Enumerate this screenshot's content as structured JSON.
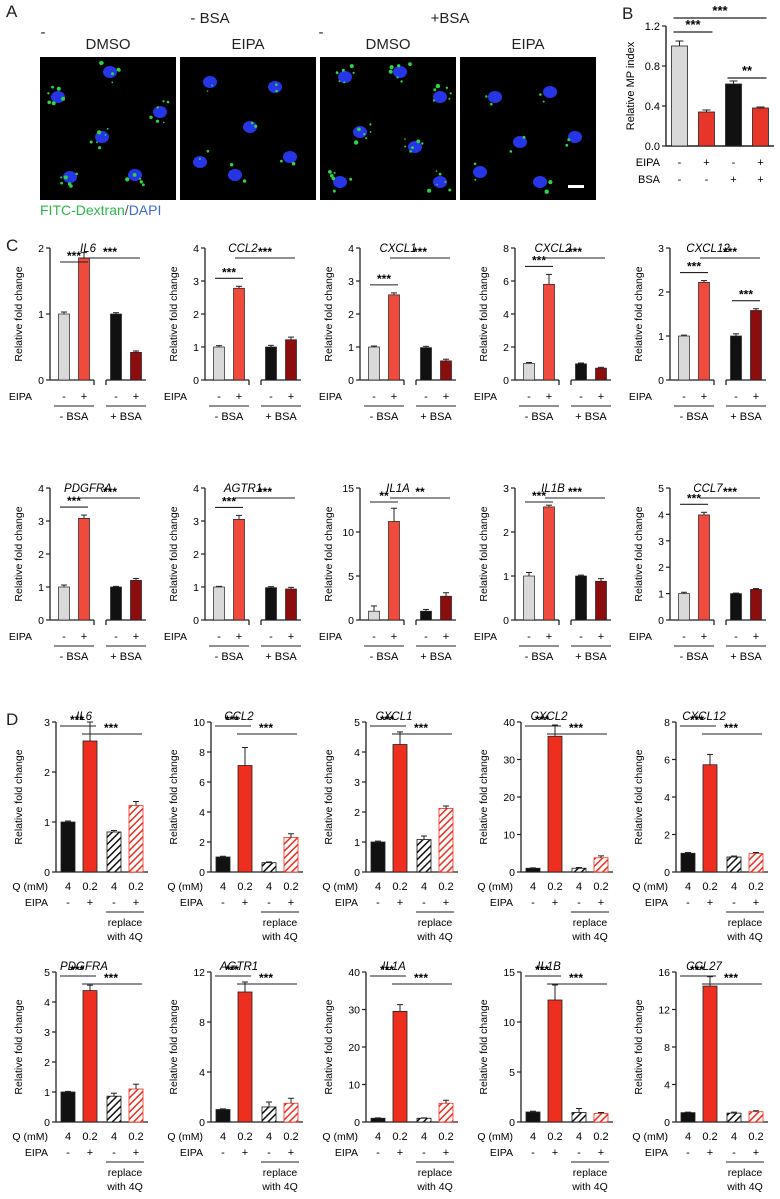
{
  "panelA": {
    "letter": "A",
    "group_labels": [
      "- BSA",
      "+BSA"
    ],
    "dash_marks": [
      "-",
      "-"
    ],
    "titles": [
      "DMSO",
      "EIPA",
      "DMSO",
      "EIPA"
    ],
    "legend_green": "FITC-Dextran",
    "legend_slash": "/",
    "legend_blue": "DAPI",
    "colors": {
      "dextran": "#2bd646",
      "dapi": "#2a3cff"
    }
  },
  "panelB": {
    "letter": "B",
    "chart_data": {
      "type": "bar",
      "ylabel": "Relative MP index",
      "ylim": [
        0,
        1.2
      ],
      "yticks": [
        "0.0",
        "0.4",
        "0.8",
        "1.2"
      ],
      "values": [
        1.0,
        0.34,
        0.62,
        0.38
      ],
      "errors": [
        0.05,
        0.02,
        0.03,
        0.01
      ],
      "colors": [
        "#d9d9d9",
        "#e8352a",
        "#111111",
        "#e8352a"
      ],
      "rows": [
        {
          "label": "EIPA",
          "marks": [
            "-",
            "+",
            "-",
            "+"
          ]
        },
        {
          "label": "BSA",
          "marks": [
            "-",
            "-",
            "+",
            "+"
          ]
        }
      ],
      "sig": [
        {
          "from": 0,
          "to": 3,
          "text": "***"
        },
        {
          "from": 0,
          "to": 1,
          "text": "***"
        },
        {
          "from": 2,
          "to": 3,
          "text": "**"
        }
      ]
    }
  },
  "panelC": {
    "letter": "C",
    "ylabel": "Relative fold change",
    "row_label": "EIPA",
    "marks": [
      "-",
      "+",
      "-",
      "+"
    ],
    "groups": [
      "- BSA",
      "+ BSA"
    ],
    "colors": [
      "#d9d9d9",
      "#f04a3c",
      "#111111",
      "#8b0d0d"
    ],
    "chart_data": [
      {
        "type": "bar",
        "title": "IL6",
        "ylim": [
          0,
          2
        ],
        "yticks": [
          "0",
          "1",
          "2"
        ],
        "values": [
          1.0,
          1.85,
          1.0,
          0.42
        ],
        "errors": [
          0.03,
          0.08,
          0.02,
          0.02
        ],
        "sig": [
          {
            "from": 0,
            "to": 1,
            "text": "***"
          },
          {
            "from": 1,
            "to": 3,
            "text": "***"
          }
        ]
      },
      {
        "type": "bar",
        "title": "CCL2",
        "ylim": [
          0,
          4
        ],
        "yticks": [
          "0",
          "1",
          "2",
          "3",
          "4"
        ],
        "values": [
          1.0,
          2.78,
          1.0,
          1.22
        ],
        "errors": [
          0.04,
          0.06,
          0.05,
          0.08
        ],
        "sig": [
          {
            "from": 0,
            "to": 1,
            "text": "***"
          },
          {
            "from": 1,
            "to": 3,
            "text": "***"
          }
        ]
      },
      {
        "type": "bar",
        "title": "CXCL1",
        "ylim": [
          0,
          4
        ],
        "yticks": [
          "0",
          "1",
          "2",
          "3",
          "4"
        ],
        "values": [
          1.0,
          2.58,
          0.98,
          0.58
        ],
        "errors": [
          0.03,
          0.06,
          0.04,
          0.05
        ],
        "sig": [
          {
            "from": 0,
            "to": 1,
            "text": "***"
          },
          {
            "from": 1,
            "to": 3,
            "text": "***"
          }
        ]
      },
      {
        "type": "bar",
        "title": "CXCL2",
        "ylim": [
          0,
          8
        ],
        "yticks": [
          "0",
          "2",
          "4",
          "6",
          "8"
        ],
        "values": [
          1.0,
          5.8,
          0.98,
          0.72
        ],
        "errors": [
          0.06,
          0.6,
          0.05,
          0.05
        ],
        "sig": [
          {
            "from": 0,
            "to": 1,
            "text": "***"
          },
          {
            "from": 1,
            "to": 3,
            "text": "***"
          }
        ]
      },
      {
        "type": "bar",
        "title": "CXCL12",
        "ylim": [
          0,
          3
        ],
        "yticks": [
          "0",
          "1",
          "2",
          "3"
        ],
        "values": [
          1.0,
          2.22,
          1.0,
          1.58
        ],
        "errors": [
          0.02,
          0.04,
          0.05,
          0.04
        ],
        "sig": [
          {
            "from": 0,
            "to": 1,
            "text": "***"
          },
          {
            "from": 1,
            "to": 3,
            "text": "***"
          },
          {
            "from": 2,
            "to": 3,
            "text": "***"
          }
        ]
      },
      {
        "type": "bar",
        "title": "PDGFRA",
        "ylim": [
          0,
          4
        ],
        "yticks": [
          "0",
          "1",
          "2",
          "3",
          "4"
        ],
        "values": [
          1.0,
          3.08,
          1.0,
          1.2
        ],
        "errors": [
          0.06,
          0.1,
          0.02,
          0.06
        ],
        "sig": [
          {
            "from": 0,
            "to": 1,
            "text": "***"
          },
          {
            "from": 1,
            "to": 3,
            "text": "***"
          }
        ]
      },
      {
        "type": "bar",
        "title": "AGTR1",
        "ylim": [
          0,
          4
        ],
        "yticks": [
          "0",
          "1",
          "2",
          "3",
          "4"
        ],
        "values": [
          1.0,
          3.05,
          0.98,
          0.94
        ],
        "errors": [
          0.02,
          0.12,
          0.03,
          0.05
        ],
        "sig": [
          {
            "from": 0,
            "to": 1,
            "text": "***"
          },
          {
            "from": 1,
            "to": 3,
            "text": "***"
          }
        ]
      },
      {
        "type": "bar",
        "title": "IL1A",
        "ylim": [
          0,
          15
        ],
        "yticks": [
          "0",
          "5",
          "10",
          "15"
        ],
        "values": [
          1.0,
          11.2,
          1.0,
          2.7
        ],
        "errors": [
          0.6,
          1.5,
          0.2,
          0.4
        ],
        "sig": [
          {
            "from": 0,
            "to": 1,
            "text": "**"
          },
          {
            "from": 1,
            "to": 3,
            "text": "**"
          }
        ]
      },
      {
        "type": "bar",
        "title": "IL1B",
        "ylim": [
          0,
          3
        ],
        "yticks": [
          "0",
          "1",
          "2",
          "3"
        ],
        "values": [
          1.0,
          2.57,
          1.0,
          0.88
        ],
        "errors": [
          0.08,
          0.04,
          0.02,
          0.06
        ],
        "sig": [
          {
            "from": 0,
            "to": 1,
            "text": "***"
          },
          {
            "from": 1,
            "to": 3,
            "text": "***"
          }
        ]
      },
      {
        "type": "bar",
        "title": "CCL7",
        "ylim": [
          0,
          5
        ],
        "yticks": [
          "0",
          "1",
          "2",
          "3",
          "4",
          "5"
        ],
        "values": [
          1.0,
          3.98,
          1.0,
          1.16
        ],
        "errors": [
          0.05,
          0.1,
          0.02,
          0.03
        ],
        "sig": [
          {
            "from": 0,
            "to": 1,
            "text": "***"
          },
          {
            "from": 1,
            "to": 3,
            "text": "***"
          }
        ]
      }
    ]
  },
  "panelD": {
    "letter": "D",
    "ylabel": "Relative fold change",
    "q_label": "Q (mM)",
    "q_values": [
      "4",
      "0.2",
      "4",
      "0.2"
    ],
    "eipa_label": "EIPA",
    "eipa_marks": [
      "-",
      "+",
      "-",
      "+"
    ],
    "replace_line1": "replace",
    "replace_line2": "with 4Q",
    "colors": {
      "black": "#111111",
      "red": "#ee2e1e",
      "hatch": "#ee2e1e"
    },
    "chart_data": [
      {
        "type": "bar",
        "title": "IL6",
        "ylim": [
          0,
          3
        ],
        "yticks": [
          "0",
          "1",
          "2",
          "3"
        ],
        "values": [
          1.0,
          2.62,
          0.8,
          1.33
        ],
        "errors": [
          0.02,
          0.38,
          0.03,
          0.08
        ],
        "sig": [
          {
            "from": 0,
            "to": 1,
            "text": "***"
          },
          {
            "from": 1,
            "to": 3,
            "text": "***"
          }
        ]
      },
      {
        "type": "bar",
        "title": "CCL2",
        "ylim": [
          0,
          10
        ],
        "yticks": [
          "0",
          "2",
          "4",
          "6",
          "8",
          "10"
        ],
        "values": [
          1.0,
          7.1,
          0.62,
          2.3
        ],
        "errors": [
          0.05,
          1.2,
          0.05,
          0.25
        ],
        "sig": [
          {
            "from": 0,
            "to": 1,
            "text": "***"
          },
          {
            "from": 1,
            "to": 3,
            "text": "***"
          }
        ]
      },
      {
        "type": "bar",
        "title": "CXCL1",
        "ylim": [
          0,
          5
        ],
        "yticks": [
          "0",
          "1",
          "2",
          "3",
          "4",
          "5"
        ],
        "values": [
          1.0,
          4.25,
          1.08,
          2.12
        ],
        "errors": [
          0.03,
          0.42,
          0.12,
          0.08
        ],
        "sig": [
          {
            "from": 0,
            "to": 1,
            "text": "***"
          },
          {
            "from": 1,
            "to": 3,
            "text": "***"
          }
        ]
      },
      {
        "type": "bar",
        "title": "CXCL2",
        "ylim": [
          0,
          40
        ],
        "yticks": [
          "0",
          "10",
          "20",
          "30",
          "40"
        ],
        "values": [
          1.0,
          36.2,
          1.0,
          3.8
        ],
        "errors": [
          0.1,
          3.0,
          0.2,
          0.5
        ],
        "sig": [
          {
            "from": 0,
            "to": 1,
            "text": "***"
          },
          {
            "from": 1,
            "to": 3,
            "text": "***"
          }
        ]
      },
      {
        "type": "bar",
        "title": "CXCL12",
        "ylim": [
          0,
          8
        ],
        "yticks": [
          "0",
          "2",
          "4",
          "6",
          "8"
        ],
        "values": [
          1.0,
          5.72,
          0.8,
          0.98
        ],
        "errors": [
          0.04,
          0.55,
          0.05,
          0.06
        ],
        "sig": [
          {
            "from": 0,
            "to": 1,
            "text": "***"
          },
          {
            "from": 1,
            "to": 3,
            "text": "***"
          }
        ]
      },
      {
        "type": "bar",
        "title": "PDGFRA",
        "ylim": [
          0,
          5
        ],
        "yticks": [
          "0",
          "1",
          "2",
          "3",
          "4",
          "5"
        ],
        "values": [
          1.0,
          4.38,
          0.86,
          1.1
        ],
        "errors": [
          0.02,
          0.18,
          0.1,
          0.16
        ],
        "sig": [
          {
            "from": 0,
            "to": 1,
            "text": "***"
          },
          {
            "from": 1,
            "to": 3,
            "text": "***"
          }
        ]
      },
      {
        "type": "bar",
        "title": "AGTR1",
        "ylim": [
          0,
          12
        ],
        "yticks": [
          "0",
          "4",
          "8",
          "12"
        ],
        "values": [
          1.0,
          10.4,
          1.2,
          1.5
        ],
        "errors": [
          0.05,
          0.8,
          0.4,
          0.4
        ],
        "sig": [
          {
            "from": 0,
            "to": 1,
            "text": "***"
          },
          {
            "from": 1,
            "to": 3,
            "text": "***"
          }
        ]
      },
      {
        "type": "bar",
        "title": "IL1A",
        "ylim": [
          0,
          40
        ],
        "yticks": [
          "0",
          "10",
          "20",
          "30",
          "40"
        ],
        "values": [
          1.0,
          29.5,
          1.0,
          5.0
        ],
        "errors": [
          0.1,
          1.8,
          0.1,
          0.8
        ],
        "sig": [
          {
            "from": 0,
            "to": 1,
            "text": "***"
          },
          {
            "from": 1,
            "to": 3,
            "text": "***"
          }
        ]
      },
      {
        "type": "bar",
        "title": "IL1B",
        "ylim": [
          0,
          15
        ],
        "yticks": [
          "0",
          "5",
          "10",
          "15"
        ],
        "values": [
          1.0,
          12.2,
          0.95,
          0.85
        ],
        "errors": [
          0.08,
          1.5,
          0.4,
          0.1
        ],
        "sig": [
          {
            "from": 0,
            "to": 1,
            "text": "***"
          },
          {
            "from": 1,
            "to": 3,
            "text": "***"
          }
        ]
      },
      {
        "type": "bar",
        "title": "CCL27",
        "ylim": [
          0,
          16
        ],
        "yticks": [
          "0",
          "4",
          "8",
          "12",
          "16"
        ],
        "values": [
          1.0,
          14.5,
          0.95,
          1.1
        ],
        "errors": [
          0.05,
          1.0,
          0.1,
          0.1
        ],
        "sig": [
          {
            "from": 0,
            "to": 1,
            "text": "***"
          },
          {
            "from": 1,
            "to": 3,
            "text": "***"
          }
        ]
      }
    ]
  }
}
